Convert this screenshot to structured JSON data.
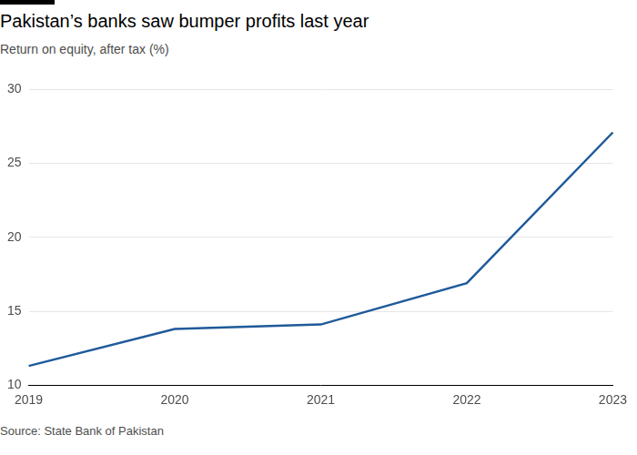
{
  "chart_data": {
    "type": "line",
    "title": "Pakistan’s banks saw bumper profits last year",
    "subtitle": "Return on equity, after tax (%)",
    "source": "Source: State Bank of Pakistan",
    "categories": [
      "2019",
      "2020",
      "2021",
      "2022",
      "2023"
    ],
    "values": [
      11.3,
      13.8,
      14.1,
      16.9,
      27.1
    ],
    "color": "#1f5a9a",
    "ylim": [
      10,
      30
    ],
    "yticks": [
      10,
      15,
      20,
      25,
      30
    ],
    "grid": true
  }
}
